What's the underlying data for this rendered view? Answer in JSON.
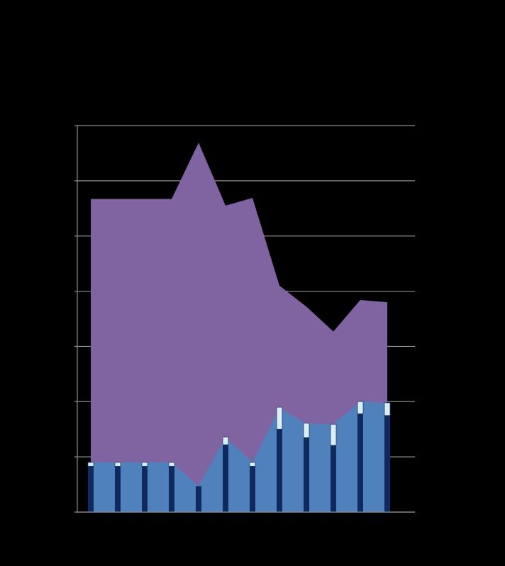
{
  "chart_data": {
    "type": "combo",
    "categories": [
      null,
      null,
      null,
      null,
      null,
      null,
      null,
      null,
      null,
      null,
      null,
      null
    ],
    "ylim": [
      0,
      7
    ],
    "yticks": [
      0,
      1,
      2,
      3,
      4,
      5,
      6,
      7
    ],
    "grid": true,
    "series": [
      {
        "kind": "area",
        "color": "#8064a2",
        "values": [
          5.67,
          5.67,
          5.67,
          5.67,
          6.69,
          5.55,
          5.69,
          4.1,
          3.72,
          3.27,
          3.84,
          3.8
        ]
      },
      {
        "kind": "area",
        "color": "#4f81bd",
        "values": [
          0.9,
          0.9,
          0.9,
          0.9,
          0.47,
          1.35,
          0.9,
          1.89,
          1.6,
          1.59,
          2.0,
          1.98
        ]
      },
      {
        "kind": "bar",
        "color": "#0f2a5e",
        "values": [
          0.83,
          0.83,
          0.83,
          0.83,
          0.47,
          1.22,
          0.83,
          1.5,
          1.35,
          1.21,
          1.78,
          1.75
        ]
      },
      {
        "kind": "bar",
        "color": "#dbeef4",
        "values": [
          0.07,
          0.07,
          0.07,
          0.07,
          0,
          0.14,
          0.07,
          0.4,
          0.26,
          0.38,
          0.22,
          0.23
        ]
      }
    ]
  }
}
